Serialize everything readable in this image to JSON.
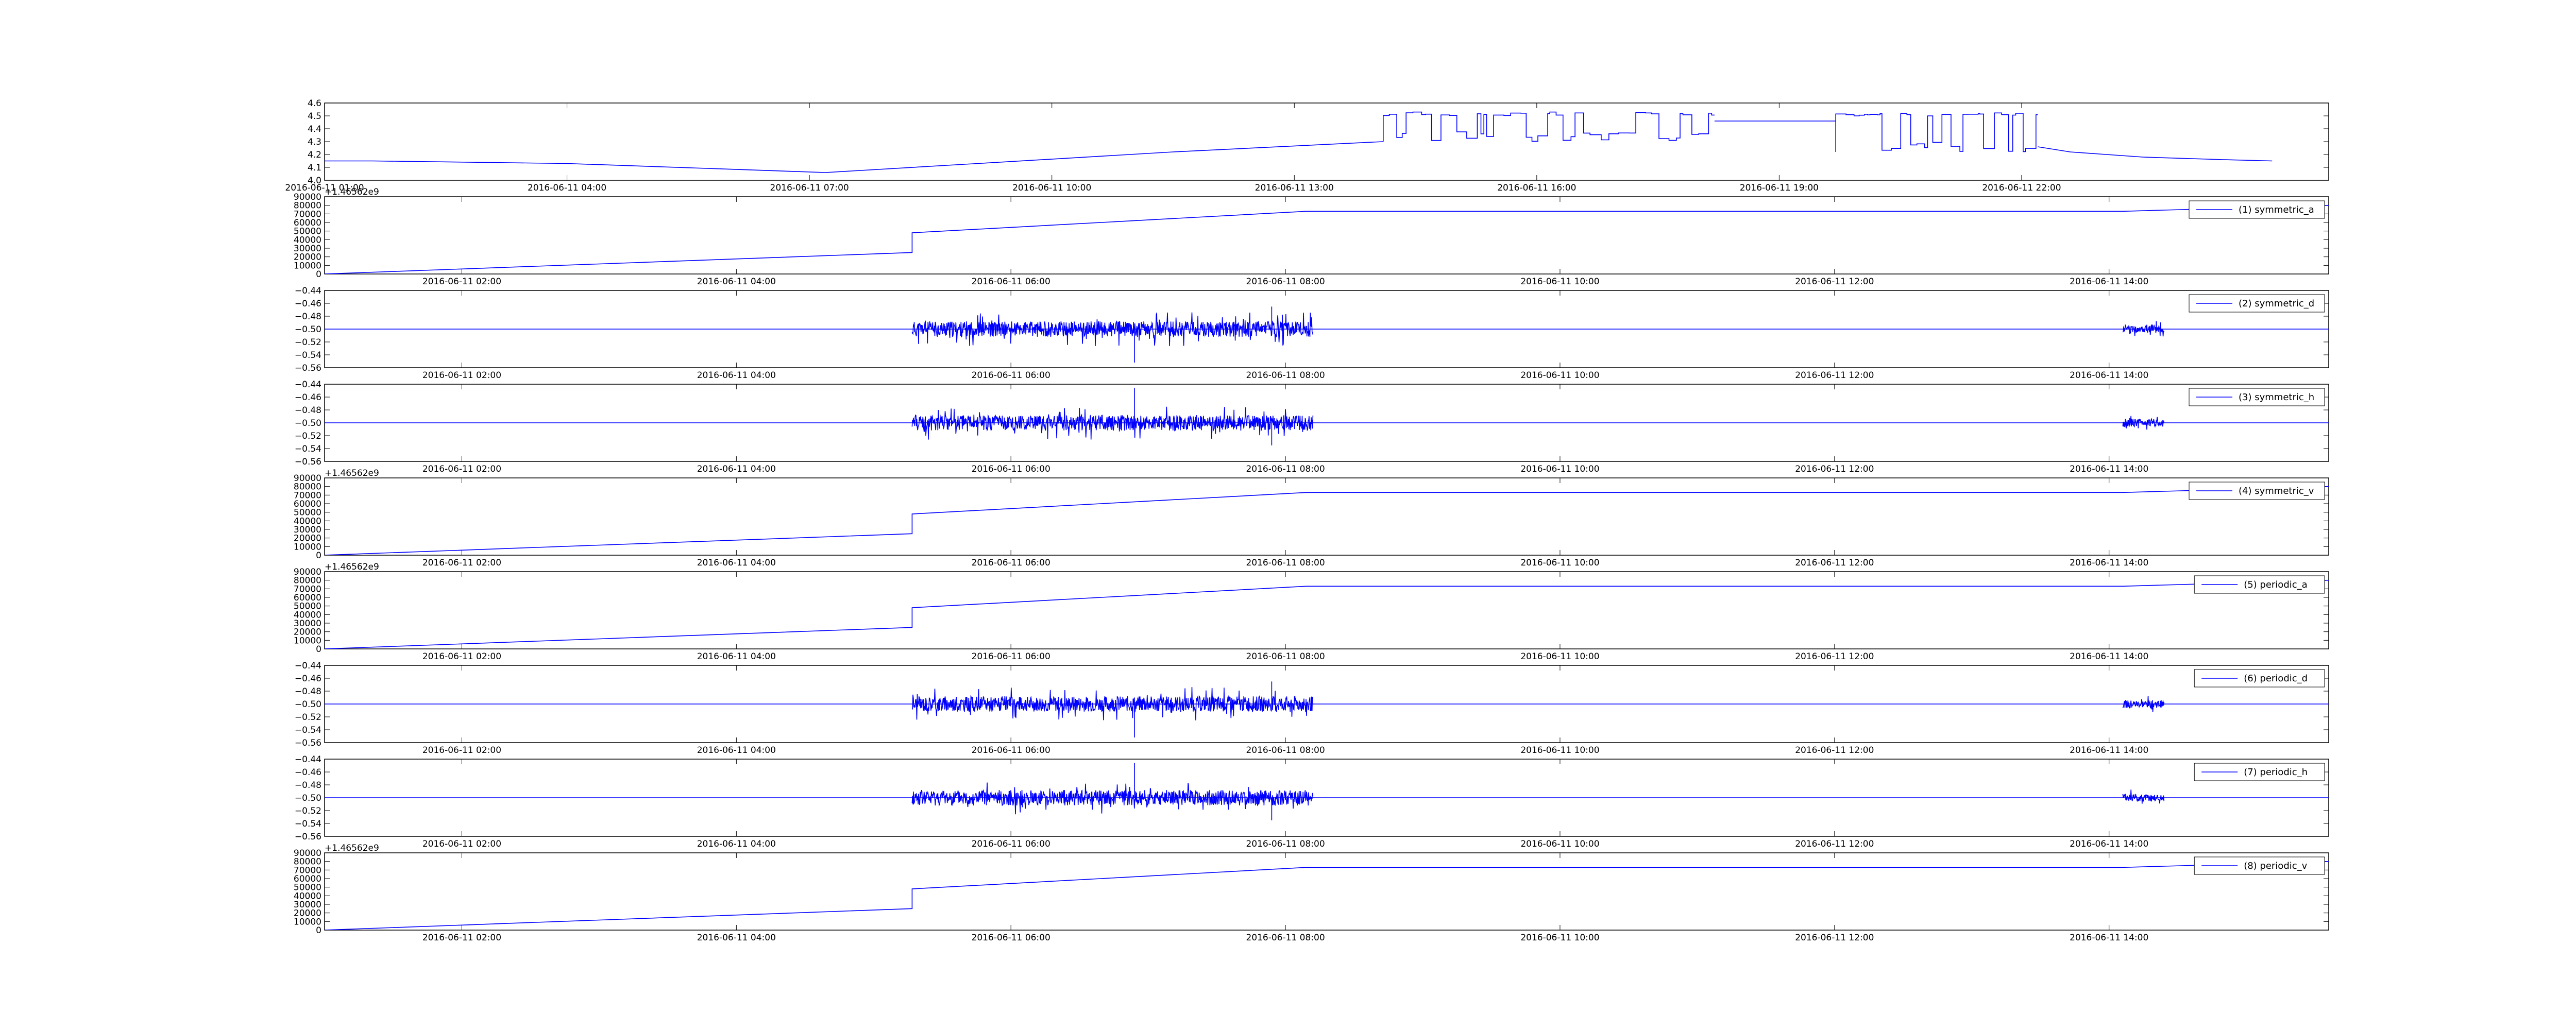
{
  "figure": {
    "background": "#ffffff",
    "line_color": "#0000ff"
  },
  "chart_data": [
    {
      "type": "line",
      "ylim": [
        4.0,
        4.6
      ],
      "yticks": [
        "4.0",
        "4.1",
        "4.2",
        "4.3",
        "4.4",
        "4.5",
        "4.6"
      ],
      "xticks": [
        "2016-06-11 01:00",
        "2016-06-11 04:00",
        "2016-06-11 07:00",
        "2016-06-11 10:00",
        "2016-06-11 13:00",
        "2016-06-11 16:00",
        "2016-06-11 19:00",
        "2016-06-11 22:00"
      ],
      "segments": [
        {
          "kind": "line",
          "x": [
            0.0,
            0.6,
            3.0,
            6.2,
            10.5,
            13.1
          ],
          "y": [
            4.15,
            4.15,
            4.13,
            4.06,
            4.22,
            4.3
          ]
        },
        {
          "kind": "switch",
          "x0": 13.1,
          "x1": 17.2,
          "lo": 4.3,
          "hi": 4.53
        },
        {
          "kind": "line",
          "x": [
            17.2,
            18.7
          ],
          "y": [
            4.46,
            4.46
          ]
        },
        {
          "kind": "switch",
          "x0": 18.7,
          "x1": 21.2,
          "lo": 4.22,
          "hi": 4.53
        },
        {
          "kind": "line",
          "x": [
            21.2,
            21.6,
            22.5,
            23.5,
            24.1
          ],
          "y": [
            4.26,
            4.22,
            4.18,
            4.16,
            4.15
          ]
        }
      ]
    },
    {
      "type": "line",
      "offset_label": "+1.46562e9",
      "ylim": [
        0,
        90000
      ],
      "yticks": [
        "0",
        "10000",
        "20000",
        "30000",
        "40000",
        "50000",
        "60000",
        "70000",
        "80000",
        "90000"
      ],
      "xticks": [
        "2016-06-11 02:00",
        "2016-06-11 04:00",
        "2016-06-11 06:00",
        "2016-06-11 08:00",
        "2016-06-11 10:00",
        "2016-06-11 12:00",
        "2016-06-11 14:00"
      ],
      "legend": "(1) symmetric_a",
      "segments": [
        {
          "kind": "line",
          "x": [
            0.0,
            4.28,
            4.28,
            7.15,
            13.1,
            14.6
          ],
          "y": [
            0,
            25000,
            48000,
            73000,
            73000,
            80000
          ]
        }
      ]
    },
    {
      "type": "line",
      "ylim": [
        -0.56,
        -0.44
      ],
      "yticks": [
        "−0.56",
        "−0.54",
        "−0.52",
        "−0.50",
        "−0.48",
        "−0.46",
        "−0.44"
      ],
      "xticks": [
        "2016-06-11 02:00",
        "2016-06-11 04:00",
        "2016-06-11 06:00",
        "2016-06-11 08:00",
        "2016-06-11 10:00",
        "2016-06-11 12:00",
        "2016-06-11 14:00"
      ],
      "legend": "(2) symmetric_d",
      "segments": [
        {
          "kind": "line",
          "x": [
            0.0,
            14.6
          ],
          "y": [
            -0.5,
            -0.5
          ]
        },
        {
          "kind": "noise",
          "x0": 4.28,
          "x1": 7.2,
          "mid": -0.5,
          "amp": 0.012,
          "seed": 11
        },
        {
          "kind": "noise",
          "x0": 13.1,
          "x1": 13.4,
          "mid": -0.5,
          "amp": 0.006,
          "seed": 12
        },
        {
          "kind": "spike",
          "x": 5.9,
          "from": -0.5,
          "to": -0.552
        },
        {
          "kind": "spike",
          "x": 6.9,
          "from": -0.5,
          "to": -0.465
        }
      ]
    },
    {
      "type": "line",
      "ylim": [
        -0.56,
        -0.44
      ],
      "yticks": [
        "−0.56",
        "−0.54",
        "−0.52",
        "−0.50",
        "−0.48",
        "−0.46",
        "−0.44"
      ],
      "xticks": [
        "2016-06-11 02:00",
        "2016-06-11 04:00",
        "2016-06-11 06:00",
        "2016-06-11 08:00",
        "2016-06-11 10:00",
        "2016-06-11 12:00",
        "2016-06-11 14:00"
      ],
      "legend": "(3) symmetric_h",
      "segments": [
        {
          "kind": "line",
          "x": [
            0.0,
            14.6
          ],
          "y": [
            -0.5,
            -0.5
          ]
        },
        {
          "kind": "noise",
          "x0": 4.28,
          "x1": 7.2,
          "mid": -0.5,
          "amp": 0.012,
          "seed": 21
        },
        {
          "kind": "noise",
          "x0": 13.1,
          "x1": 13.4,
          "mid": -0.5,
          "amp": 0.006,
          "seed": 22
        },
        {
          "kind": "spike",
          "x": 5.9,
          "from": -0.5,
          "to": -0.446
        },
        {
          "kind": "spike",
          "x": 6.9,
          "from": -0.5,
          "to": -0.535
        }
      ]
    },
    {
      "type": "line",
      "offset_label": "+1.46562e9",
      "ylim": [
        0,
        90000
      ],
      "yticks": [
        "0",
        "10000",
        "20000",
        "30000",
        "40000",
        "50000",
        "60000",
        "70000",
        "80000",
        "90000"
      ],
      "xticks": [
        "2016-06-11 02:00",
        "2016-06-11 04:00",
        "2016-06-11 06:00",
        "2016-06-11 08:00",
        "2016-06-11 10:00",
        "2016-06-11 12:00",
        "2016-06-11 14:00"
      ],
      "legend": "(4) symmetric_v",
      "segments": [
        {
          "kind": "line",
          "x": [
            0.0,
            4.28,
            4.28,
            7.15,
            13.1,
            14.6
          ],
          "y": [
            0,
            25000,
            48000,
            73000,
            73000,
            80000
          ]
        }
      ]
    },
    {
      "type": "line",
      "offset_label": "+1.46562e9",
      "ylim": [
        0,
        90000
      ],
      "yticks": [
        "0",
        "10000",
        "20000",
        "30000",
        "40000",
        "50000",
        "60000",
        "70000",
        "80000",
        "90000"
      ],
      "xticks": [
        "2016-06-11 02:00",
        "2016-06-11 04:00",
        "2016-06-11 06:00",
        "2016-06-11 08:00",
        "2016-06-11 10:00",
        "2016-06-11 12:00",
        "2016-06-11 14:00"
      ],
      "legend": "(5) periodic_a",
      "segments": [
        {
          "kind": "line",
          "x": [
            0.0,
            4.28,
            4.28,
            7.15,
            13.1,
            14.6
          ],
          "y": [
            0,
            25000,
            48000,
            73000,
            73000,
            80000
          ]
        }
      ]
    },
    {
      "type": "line",
      "ylim": [
        -0.56,
        -0.44
      ],
      "yticks": [
        "−0.56",
        "−0.54",
        "−0.52",
        "−0.50",
        "−0.48",
        "−0.46",
        "−0.44"
      ],
      "xticks": [
        "2016-06-11 02:00",
        "2016-06-11 04:00",
        "2016-06-11 06:00",
        "2016-06-11 08:00",
        "2016-06-11 10:00",
        "2016-06-11 12:00",
        "2016-06-11 14:00"
      ],
      "legend": "(6) periodic_d",
      "segments": [
        {
          "kind": "line",
          "x": [
            0.0,
            14.6
          ],
          "y": [
            -0.5,
            -0.5
          ]
        },
        {
          "kind": "noise",
          "x0": 4.28,
          "x1": 7.2,
          "mid": -0.5,
          "amp": 0.012,
          "seed": 31
        },
        {
          "kind": "noise",
          "x0": 13.1,
          "x1": 13.4,
          "mid": -0.5,
          "amp": 0.006,
          "seed": 32
        },
        {
          "kind": "spike",
          "x": 5.9,
          "from": -0.5,
          "to": -0.552
        },
        {
          "kind": "spike",
          "x": 6.9,
          "from": -0.5,
          "to": -0.465
        }
      ]
    },
    {
      "type": "line",
      "ylim": [
        -0.56,
        -0.44
      ],
      "yticks": [
        "−0.56",
        "−0.54",
        "−0.52",
        "−0.50",
        "−0.48",
        "−0.46",
        "−0.44"
      ],
      "xticks": [
        "2016-06-11 02:00",
        "2016-06-11 04:00",
        "2016-06-11 06:00",
        "2016-06-11 08:00",
        "2016-06-11 10:00",
        "2016-06-11 12:00",
        "2016-06-11 14:00"
      ],
      "legend": "(7) periodic_h",
      "segments": [
        {
          "kind": "line",
          "x": [
            0.0,
            14.6
          ],
          "y": [
            -0.5,
            -0.5
          ]
        },
        {
          "kind": "noise",
          "x0": 4.28,
          "x1": 7.2,
          "mid": -0.5,
          "amp": 0.012,
          "seed": 41
        },
        {
          "kind": "noise",
          "x0": 13.1,
          "x1": 13.4,
          "mid": -0.5,
          "amp": 0.006,
          "seed": 42
        },
        {
          "kind": "spike",
          "x": 5.9,
          "from": -0.5,
          "to": -0.446
        },
        {
          "kind": "spike",
          "x": 6.9,
          "from": -0.5,
          "to": -0.535
        }
      ]
    },
    {
      "type": "line",
      "offset_label": "+1.46562e9",
      "ylim": [
        0,
        90000
      ],
      "yticks": [
        "0",
        "10000",
        "20000",
        "30000",
        "40000",
        "50000",
        "60000",
        "70000",
        "80000",
        "90000"
      ],
      "xticks": [
        "2016-06-11 02:00",
        "2016-06-11 04:00",
        "2016-06-11 06:00",
        "2016-06-11 08:00",
        "2016-06-11 10:00",
        "2016-06-11 12:00",
        "2016-06-11 14:00"
      ],
      "legend": "(8) periodic_v",
      "segments": [
        {
          "kind": "line",
          "x": [
            0.0,
            4.28,
            4.28,
            7.15,
            13.1,
            14.6
          ],
          "y": [
            0,
            25000,
            48000,
            73000,
            73000,
            80000
          ]
        }
      ]
    }
  ]
}
